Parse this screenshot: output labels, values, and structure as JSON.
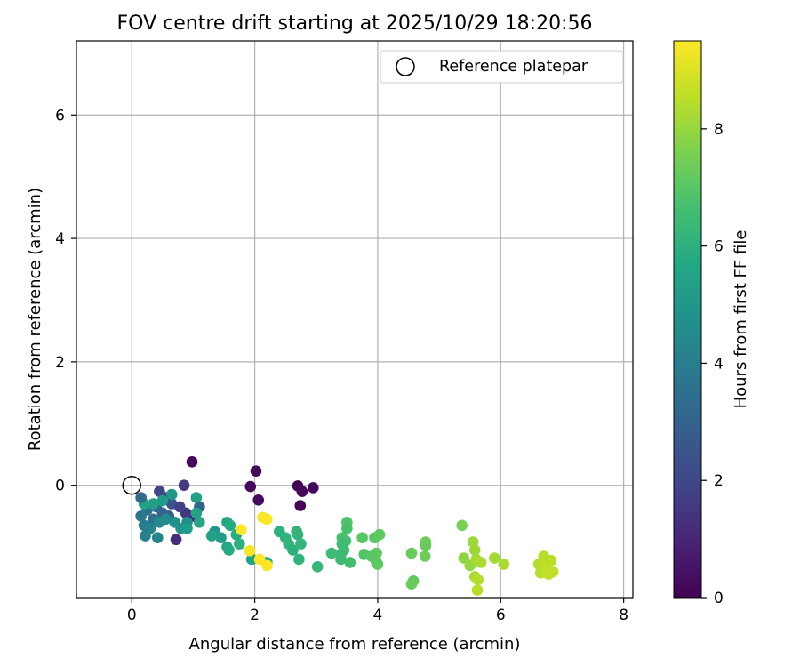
{
  "chart_data": {
    "type": "scatter",
    "title": "FOV centre drift starting at 2025/10/29 18:20:56",
    "xlabel": "Angular distance from reference (arcmin)",
    "ylabel": "Rotation from reference (arcmin)",
    "xlim": [
      -0.9,
      8.15
    ],
    "ylim": [
      -1.82,
      7.2
    ],
    "xticks": [
      0,
      2,
      4,
      6,
      8
    ],
    "yticks": [
      0,
      2,
      4,
      6
    ],
    "grid": true,
    "legend": {
      "position": "upper-right",
      "entries": [
        "Reference platepar"
      ]
    },
    "reference_point": {
      "label": "Reference platepar",
      "x": 0,
      "y": 0
    },
    "colorbar": {
      "label": "Hours from first FF file",
      "range": [
        0,
        9.5
      ],
      "ticks": [
        0,
        2,
        4,
        6,
        8
      ],
      "colormap": "viridis"
    },
    "points": [
      {
        "x": 0.98,
        "y": 0.38,
        "h": 0.2
      },
      {
        "x": 2.02,
        "y": 0.23,
        "h": 0.2
      },
      {
        "x": 1.93,
        "y": -0.02,
        "h": 0.2
      },
      {
        "x": 2.06,
        "y": -0.24,
        "h": 0.3
      },
      {
        "x": 2.7,
        "y": -0.01,
        "h": 0.1
      },
      {
        "x": 2.77,
        "y": -0.1,
        "h": 0.2
      },
      {
        "x": 2.95,
        "y": -0.04,
        "h": 0.2
      },
      {
        "x": 2.74,
        "y": -0.33,
        "h": 0.1
      },
      {
        "x": 0.85,
        "y": 0.0,
        "h": 1.6
      },
      {
        "x": 0.72,
        "y": -0.88,
        "h": 1.2
      },
      {
        "x": 1.0,
        "y": -0.5,
        "h": 1.0
      },
      {
        "x": 0.88,
        "y": -0.45,
        "h": 1.5
      },
      {
        "x": 0.45,
        "y": -0.1,
        "h": 2.0
      },
      {
        "x": 0.55,
        "y": -0.2,
        "h": 2.2
      },
      {
        "x": 0.65,
        "y": -0.3,
        "h": 2.5
      },
      {
        "x": 0.78,
        "y": -0.35,
        "h": 1.8
      },
      {
        "x": 0.6,
        "y": -0.5,
        "h": 2.8
      },
      {
        "x": 0.5,
        "y": -0.45,
        "h": 3.0
      },
      {
        "x": 0.4,
        "y": -0.35,
        "h": 3.2
      },
      {
        "x": 0.35,
        "y": -0.55,
        "h": 3.5
      },
      {
        "x": 0.25,
        "y": -0.4,
        "h": 3.6
      },
      {
        "x": 0.15,
        "y": -0.5,
        "h": 3.8
      },
      {
        "x": 0.2,
        "y": -0.65,
        "h": 4.0
      },
      {
        "x": 0.3,
        "y": -0.7,
        "h": 4.2
      },
      {
        "x": 0.45,
        "y": -0.6,
        "h": 4.4
      },
      {
        "x": 0.55,
        "y": -0.55,
        "h": 4.6
      },
      {
        "x": 0.7,
        "y": -0.6,
        "h": 4.8
      },
      {
        "x": 0.8,
        "y": -0.7,
        "h": 4.9
      },
      {
        "x": 0.65,
        "y": -0.15,
        "h": 5.0
      },
      {
        "x": 0.5,
        "y": -0.25,
        "h": 5.2
      },
      {
        "x": 0.35,
        "y": -0.3,
        "h": 5.3
      },
      {
        "x": 0.2,
        "y": -0.3,
        "h": 5.4
      },
      {
        "x": 0.15,
        "y": -0.2,
        "h": 3.3
      },
      {
        "x": 0.22,
        "y": -0.82,
        "h": 4.1
      },
      {
        "x": 0.42,
        "y": -0.85,
        "h": 4.3
      },
      {
        "x": 0.9,
        "y": -0.6,
        "h": 4.7
      },
      {
        "x": 1.1,
        "y": -0.35,
        "h": 3.0
      },
      {
        "x": 1.05,
        "y": -0.2,
        "h": 5.4
      },
      {
        "x": 1.05,
        "y": -0.45,
        "h": 5.5
      },
      {
        "x": 1.1,
        "y": -0.6,
        "h": 5.6
      },
      {
        "x": 0.9,
        "y": -0.7,
        "h": 5.2
      },
      {
        "x": 1.35,
        "y": -0.75,
        "h": 5.0
      },
      {
        "x": 1.45,
        "y": -0.85,
        "h": 5.2
      },
      {
        "x": 1.3,
        "y": -0.82,
        "h": 5.4
      },
      {
        "x": 1.55,
        "y": -0.6,
        "h": 5.6
      },
      {
        "x": 1.6,
        "y": -0.65,
        "h": 5.8
      },
      {
        "x": 1.7,
        "y": -0.8,
        "h": 5.9
      },
      {
        "x": 1.75,
        "y": -0.95,
        "h": 6.0
      },
      {
        "x": 1.55,
        "y": -1.0,
        "h": 5.7
      },
      {
        "x": 1.58,
        "y": -1.05,
        "h": 5.8
      },
      {
        "x": 1.95,
        "y": -1.2,
        "h": 5.5
      },
      {
        "x": 2.2,
        "y": -1.25,
        "h": 5.9
      },
      {
        "x": 1.78,
        "y": -0.72,
        "h": 9.5
      },
      {
        "x": 1.92,
        "y": -1.06,
        "h": 9.4
      },
      {
        "x": 2.08,
        "y": -1.2,
        "h": 9.5
      },
      {
        "x": 2.2,
        "y": -1.3,
        "h": 9.5
      },
      {
        "x": 2.13,
        "y": -0.52,
        "h": 9.4
      },
      {
        "x": 2.2,
        "y": -0.55,
        "h": 9.5
      },
      {
        "x": 2.4,
        "y": -0.75,
        "h": 6.0
      },
      {
        "x": 2.5,
        "y": -0.85,
        "h": 6.1
      },
      {
        "x": 2.55,
        "y": -0.95,
        "h": 6.2
      },
      {
        "x": 2.62,
        "y": -1.05,
        "h": 6.0
      },
      {
        "x": 2.7,
        "y": -0.8,
        "h": 6.1
      },
      {
        "x": 2.68,
        "y": -0.75,
        "h": 6.2
      },
      {
        "x": 2.75,
        "y": -0.95,
        "h": 6.3
      },
      {
        "x": 2.72,
        "y": -1.2,
        "h": 6.1
      },
      {
        "x": 3.02,
        "y": -1.32,
        "h": 6.3
      },
      {
        "x": 3.25,
        "y": -1.1,
        "h": 6.5
      },
      {
        "x": 3.4,
        "y": -1.2,
        "h": 6.5
      },
      {
        "x": 3.45,
        "y": -1.05,
        "h": 6.6
      },
      {
        "x": 3.48,
        "y": -0.9,
        "h": 6.6
      },
      {
        "x": 3.42,
        "y": -0.85,
        "h": 6.7
      },
      {
        "x": 3.5,
        "y": -0.6,
        "h": 6.8
      },
      {
        "x": 3.5,
        "y": -0.7,
        "h": 6.7
      },
      {
        "x": 3.42,
        "y": -0.95,
        "h": 6.5
      },
      {
        "x": 3.4,
        "y": -1.12,
        "h": 6.4
      },
      {
        "x": 3.55,
        "y": -1.25,
        "h": 6.6
      },
      {
        "x": 3.75,
        "y": -0.85,
        "h": 7.0
      },
      {
        "x": 3.78,
        "y": -1.12,
        "h": 6.9
      },
      {
        "x": 3.95,
        "y": -0.85,
        "h": 7.0
      },
      {
        "x": 4.03,
        "y": -0.8,
        "h": 7.1
      },
      {
        "x": 3.98,
        "y": -1.1,
        "h": 7.1
      },
      {
        "x": 3.97,
        "y": -1.22,
        "h": 7.0
      },
      {
        "x": 3.9,
        "y": -1.15,
        "h": 7.0
      },
      {
        "x": 4.0,
        "y": -1.28,
        "h": 7.1
      },
      {
        "x": 4.55,
        "y": -1.1,
        "h": 7.3
      },
      {
        "x": 4.58,
        "y": -1.55,
        "h": 7.2
      },
      {
        "x": 4.55,
        "y": -1.6,
        "h": 7.3
      },
      {
        "x": 4.78,
        "y": -0.92,
        "h": 7.4
      },
      {
        "x": 4.78,
        "y": -0.98,
        "h": 7.3
      },
      {
        "x": 4.77,
        "y": -1.15,
        "h": 7.4
      },
      {
        "x": 5.37,
        "y": -0.65,
        "h": 7.6
      },
      {
        "x": 5.4,
        "y": -1.18,
        "h": 7.9
      },
      {
        "x": 5.5,
        "y": -1.3,
        "h": 8.0
      },
      {
        "x": 5.55,
        "y": -0.92,
        "h": 8.1
      },
      {
        "x": 5.58,
        "y": -1.05,
        "h": 8.1
      },
      {
        "x": 5.6,
        "y": -1.2,
        "h": 8.2
      },
      {
        "x": 5.68,
        "y": -1.25,
        "h": 8.3
      },
      {
        "x": 5.58,
        "y": -1.48,
        "h": 8.3
      },
      {
        "x": 5.63,
        "y": -1.53,
        "h": 8.4
      },
      {
        "x": 5.62,
        "y": -1.7,
        "h": 8.5
      },
      {
        "x": 5.9,
        "y": -1.18,
        "h": 8.2
      },
      {
        "x": 6.05,
        "y": -1.28,
        "h": 8.3
      },
      {
        "x": 6.62,
        "y": -1.28,
        "h": 8.4
      },
      {
        "x": 6.65,
        "y": -1.42,
        "h": 8.5
      },
      {
        "x": 6.7,
        "y": -1.15,
        "h": 8.5
      },
      {
        "x": 6.72,
        "y": -1.32,
        "h": 8.6
      },
      {
        "x": 6.82,
        "y": -1.22,
        "h": 8.5
      },
      {
        "x": 6.85,
        "y": -1.4,
        "h": 8.6
      },
      {
        "x": 6.78,
        "y": -1.44,
        "h": 8.6
      }
    ]
  }
}
